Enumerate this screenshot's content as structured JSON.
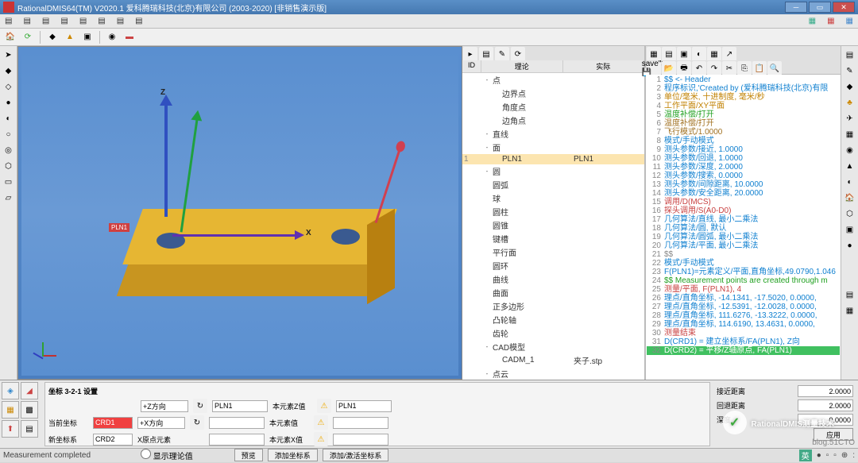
{
  "window": {
    "title": "RationalDMIS64(TM) V2020.1    爱科腾瑞科技(北京)有限公司 (2003-2020) [非销售演示版]"
  },
  "menu": {
    "items": [
      "▤",
      "▤",
      "▤",
      "▤",
      "▤",
      "▤",
      "▤",
      "▤"
    ]
  },
  "viewport": {
    "label_x": "X",
    "label_z": "Z",
    "tag": "PLN1",
    "block_color": "#e6b633",
    "bg_top": "#5a8fd0",
    "bg_bot": "#4a7ec0"
  },
  "tree": {
    "headers": {
      "id": "ID",
      "c1": "理论",
      "c2": "实际"
    },
    "items": [
      {
        "ind": 0,
        "exp": "-",
        "label": "点",
        "c2": ""
      },
      {
        "ind": 1,
        "exp": "",
        "label": "边界点",
        "c2": ""
      },
      {
        "ind": 1,
        "exp": "",
        "label": "角度点",
        "c2": ""
      },
      {
        "ind": 1,
        "exp": "",
        "label": "边角点",
        "c2": ""
      },
      {
        "ind": 0,
        "exp": "-",
        "label": "直线",
        "c2": ""
      },
      {
        "ind": 0,
        "exp": "-",
        "label": "面",
        "c2": ""
      },
      {
        "ind": 1,
        "exp": "",
        "label": "PLN1",
        "c2": "PLN1",
        "sel": true,
        "num": "1"
      },
      {
        "ind": 0,
        "exp": "-",
        "label": "圆",
        "c2": ""
      },
      {
        "ind": 0,
        "exp": "",
        "label": "圆弧",
        "c2": ""
      },
      {
        "ind": 0,
        "exp": "",
        "label": "球",
        "c2": ""
      },
      {
        "ind": 0,
        "exp": "",
        "label": "圆柱",
        "c2": ""
      },
      {
        "ind": 0,
        "exp": "",
        "label": "圆锥",
        "c2": ""
      },
      {
        "ind": 0,
        "exp": "",
        "label": "键槽",
        "c2": ""
      },
      {
        "ind": 0,
        "exp": "",
        "label": "平行面",
        "c2": ""
      },
      {
        "ind": 0,
        "exp": "",
        "label": "圆环",
        "c2": ""
      },
      {
        "ind": 0,
        "exp": "",
        "label": "曲线",
        "c2": ""
      },
      {
        "ind": 0,
        "exp": "",
        "label": "曲面",
        "c2": ""
      },
      {
        "ind": 0,
        "exp": "",
        "label": "正多边形",
        "c2": ""
      },
      {
        "ind": 0,
        "exp": "",
        "label": "凸轮轴",
        "c2": ""
      },
      {
        "ind": 0,
        "exp": "",
        "label": "齿轮",
        "c2": ""
      },
      {
        "ind": 0,
        "exp": "-",
        "label": "CAD模型",
        "c2": ""
      },
      {
        "ind": 1,
        "exp": "",
        "label": "CADM_1",
        "c2": "夹子.stp"
      },
      {
        "ind": 0,
        "exp": "-",
        "label": "点云",
        "c2": ""
      }
    ]
  },
  "code": {
    "lines": [
      {
        "n": "1",
        "t": "$$  <- Header",
        "c": "#1080d0"
      },
      {
        "n": "2",
        "t": "程序标识,'Created by (爱科腾瑞科技(北京)有限",
        "c": "#1080d0"
      },
      {
        "n": "3",
        "t": "单位/毫米, 十进制度, 毫米/秒",
        "c": "#c08000"
      },
      {
        "n": "4",
        "t": "工作平面/XY平面",
        "c": "#c08000"
      },
      {
        "n": "5",
        "t": "温度补偿/打开",
        "c": "#20a020"
      },
      {
        "n": "6",
        "t": "温度补偿/打开",
        "c": "#a07020"
      },
      {
        "n": "7",
        "t": "飞行模式/1.0000",
        "c": "#a07020"
      },
      {
        "n": "8",
        "t": "模式/手动模式",
        "c": "#1080d0"
      },
      {
        "n": "9",
        "t": "测头参数/接近, 1.0000",
        "c": "#1080d0"
      },
      {
        "n": "10",
        "t": "测头参数/回退, 1.0000",
        "c": "#1080d0"
      },
      {
        "n": "11",
        "t": "测头参数/深度, 2.0000",
        "c": "#1080d0"
      },
      {
        "n": "12",
        "t": "测头参数/搜索, 0.0000",
        "c": "#1080d0"
      },
      {
        "n": "13",
        "t": "测头参数/间隙距离, 10.0000",
        "c": "#1080d0"
      },
      {
        "n": "14",
        "t": "测头参数/安全距离, 20.0000",
        "c": "#1080d0"
      },
      {
        "n": "15",
        "t": "调用/D(MCS)",
        "c": "#c84040"
      },
      {
        "n": "16",
        "t": "探头调用/S(A0-D0)",
        "c": "#c84040"
      },
      {
        "n": "17",
        "t": "几何算法/直线, 最小二乘法",
        "c": "#1080d0"
      },
      {
        "n": "18",
        "t": "几何算法/圆, 默认",
        "c": "#1080d0"
      },
      {
        "n": "19",
        "t": "几何算法/圆弧, 最小二乘法",
        "c": "#1080d0"
      },
      {
        "n": "20",
        "t": "几何算法/平面, 最小二乘法",
        "c": "#1080d0"
      },
      {
        "n": "21",
        "t": "$$",
        "c": "#888"
      },
      {
        "n": "22",
        "t": "模式/手动模式",
        "c": "#1080d0"
      },
      {
        "n": "23",
        "t": "F(PLN1)=元素定义/平面,直角坐标,49.0790,1.046",
        "c": "#1080d0"
      },
      {
        "n": "24",
        "t": "$$ Measurement points are created through m",
        "c": "#20a020"
      },
      {
        "n": "25",
        "t": "测量/平面, F(PLN1), 4",
        "c": "#c84040"
      },
      {
        "n": "26",
        "t": "理点/直角坐标, -14.1341, -17.5020, 0.0000,",
        "c": "#1080d0"
      },
      {
        "n": "27",
        "t": "理点/直角坐标, -12.5391, -12.0028, 0.0000,",
        "c": "#1080d0"
      },
      {
        "n": "28",
        "t": "理点/直角坐标, 111.6276, -13.3222, 0.0000,",
        "c": "#1080d0"
      },
      {
        "n": "29",
        "t": "理点/直角坐标, 114.6190,  13.4631, 0.0000,",
        "c": "#1080d0"
      },
      {
        "n": "30",
        "t": "测量结束",
        "c": "#c84040"
      },
      {
        "n": "31",
        "t": "D(CRD1) = 建立坐标系/FA(PLN1), Z向",
        "c": "#1080d0"
      },
      {
        "n": "32",
        "t": "D(CRD2) = 平移/Z轴原点, FA(PLN1)",
        "c": "#1080d0",
        "hl": true
      }
    ]
  },
  "bottom": {
    "title": "坐标 3-2-1 设置",
    "r1": {
      "l1": "+Z方向",
      "v1": "",
      "icon1": "↻",
      "l2": "PLN1",
      "l3": "本元素Z值",
      "icon2": "⚠",
      "l4": "PLN1"
    },
    "r2": {
      "lbl": "当前坐标",
      "v": "CRD1",
      "l1": "+X方向",
      "icon1": "↻",
      "l3": "本元素值",
      "icon2": "⚠"
    },
    "r3": {
      "lbl": "新坐标系",
      "v": "CRD2",
      "l1": "X原点元素",
      "l3": "本元素X值",
      "icon2": "⚠"
    },
    "chk": "显示理论值",
    "btns": {
      "b1": "预览",
      "b2": "添加坐标系",
      "b3": "添加/激活坐标系"
    }
  },
  "botright": {
    "r1": {
      "l": "接近距离",
      "v": "2.0000"
    },
    "r2": {
      "l": "回退距离",
      "v": "2.0000"
    },
    "r3": {
      "l": "深度",
      "v": "0.0000"
    },
    "r4": {
      "l": "",
      "v": "应用"
    }
  },
  "status": {
    "text": "Measurement completed",
    "lang": "英",
    "items": [
      "□",
      "□",
      "□",
      "□",
      "⊕",
      ":"
    ]
  },
  "watermark": "RationalDMIS测量技术",
  "blog": "blog.51CTO"
}
